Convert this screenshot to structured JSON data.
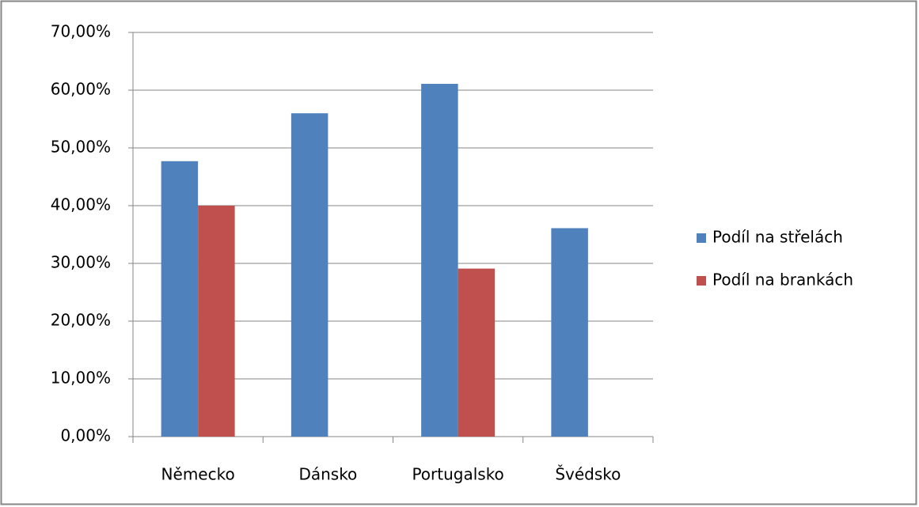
{
  "chart_data": {
    "type": "bar",
    "categories": [
      "Německo",
      "Dánsko",
      "Portugalsko",
      "Švédsko"
    ],
    "series": [
      {
        "name": "Podíl na střelách",
        "color": "#4f81bd",
        "values": [
          47.7,
          56.0,
          61.1,
          36.1
        ]
      },
      {
        "name": "Podíl na brankách",
        "color": "#c0504d",
        "values": [
          40.0,
          0,
          29.1,
          0
        ]
      }
    ],
    "ylim": [
      0,
      70
    ],
    "yticks": [
      {
        "value": 0,
        "label": "0,00%"
      },
      {
        "value": 10,
        "label": "10,00%"
      },
      {
        "value": 20,
        "label": "20,00%"
      },
      {
        "value": 30,
        "label": "30,00%"
      },
      {
        "value": 40,
        "label": "40,00%"
      },
      {
        "value": 50,
        "label": "50,00%"
      },
      {
        "value": 60,
        "label": "60,00%"
      },
      {
        "value": 70,
        "label": "70,00%"
      }
    ],
    "grid": true,
    "legend": "right"
  }
}
